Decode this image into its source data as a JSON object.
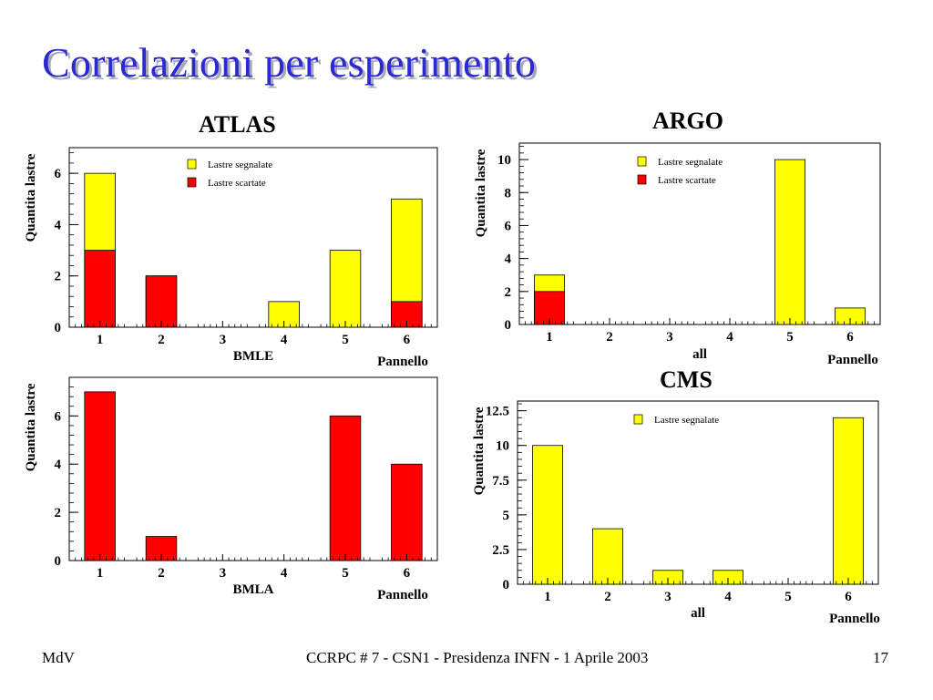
{
  "title": "Correlazioni per esperimento",
  "experiments": {
    "atlas": "ATLAS",
    "argo": "ARGO",
    "cms": "CMS"
  },
  "footer": {
    "left": "MdV",
    "center": "CCRPC # 7 - CSN1 - Presidenza INFN - 1 Aprile 2003",
    "right": "17"
  },
  "colors": {
    "segnalate": "#ffff00",
    "scartate": "#ff0000",
    "title": "#2a2ad0"
  },
  "chart_data": [
    {
      "id": "atlas-bmle",
      "experiment": "ATLAS",
      "type": "bar",
      "ylabel": "Quantita lastre",
      "xlabel": "Pannello",
      "subtitle": "BMLE",
      "categories": [
        "1",
        "2",
        "3",
        "4",
        "5",
        "6"
      ],
      "ylim": [
        0,
        7
      ],
      "yticks": [
        "0",
        "2",
        "4",
        "6"
      ],
      "legend": [
        "Lastre segnalate",
        "Lastre scartate"
      ],
      "series": [
        {
          "name": "Lastre segnalate",
          "color": "#ffff00",
          "values": [
            6,
            2,
            0,
            1,
            3,
            5
          ]
        },
        {
          "name": "Lastre scartate",
          "color": "#ff0000",
          "values": [
            3,
            2,
            0,
            0,
            0,
            1
          ]
        }
      ]
    },
    {
      "id": "argo-all",
      "experiment": "ARGO",
      "type": "bar",
      "ylabel": "Quantita lastre",
      "xlabel": "Pannello",
      "subtitle": "all",
      "categories": [
        "1",
        "2",
        "3",
        "4",
        "5",
        "6"
      ],
      "ylim": [
        0,
        11
      ],
      "yticks": [
        "0",
        "2",
        "4",
        "6",
        "8",
        "10"
      ],
      "legend": [
        "Lastre segnalate",
        "Lastre scartate"
      ],
      "series": [
        {
          "name": "Lastre segnalate",
          "color": "#ffff00",
          "values": [
            3,
            0,
            0,
            0,
            10,
            1
          ]
        },
        {
          "name": "Lastre scartate",
          "color": "#ff0000",
          "values": [
            2,
            0,
            0,
            0,
            0,
            0
          ]
        }
      ]
    },
    {
      "id": "atlas-bmla",
      "experiment": "ATLAS",
      "type": "bar",
      "ylabel": "Quantita lastre",
      "xlabel": "Pannello",
      "subtitle": "BMLA",
      "categories": [
        "1",
        "2",
        "3",
        "4",
        "5",
        "6"
      ],
      "ylim": [
        0,
        7.6
      ],
      "yticks": [
        "0",
        "2",
        "4",
        "6"
      ],
      "legend": [],
      "series": [
        {
          "name": "Lastre scartate",
          "color": "#ff0000",
          "values": [
            7,
            1,
            0,
            0,
            6,
            4
          ]
        }
      ]
    },
    {
      "id": "cms-all",
      "experiment": "CMS",
      "type": "bar",
      "ylabel": "Quantita lastre",
      "xlabel": "Pannello",
      "subtitle": "all",
      "categories": [
        "1",
        "2",
        "3",
        "4",
        "5",
        "6"
      ],
      "ylim": [
        0,
        13.2
      ],
      "yticks": [
        "0",
        "2.5",
        "5",
        "7.5",
        "10",
        "12.5"
      ],
      "legend": [
        "Lastre segnalate"
      ],
      "series": [
        {
          "name": "Lastre segnalate",
          "color": "#ffff00",
          "values": [
            10,
            4,
            1,
            1,
            0,
            12
          ]
        }
      ]
    }
  ]
}
